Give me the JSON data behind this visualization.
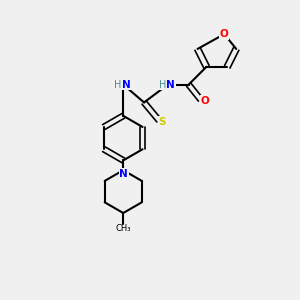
{
  "background_color": "#f0f0f0",
  "bond_color": "#000000",
  "atom_colors": {
    "O": "#ff0000",
    "N": "#0000ff",
    "S": "#cccc00",
    "C": "#000000",
    "H": "#4a9090"
  },
  "figsize": [
    3.0,
    3.0
  ],
  "dpi": 100
}
